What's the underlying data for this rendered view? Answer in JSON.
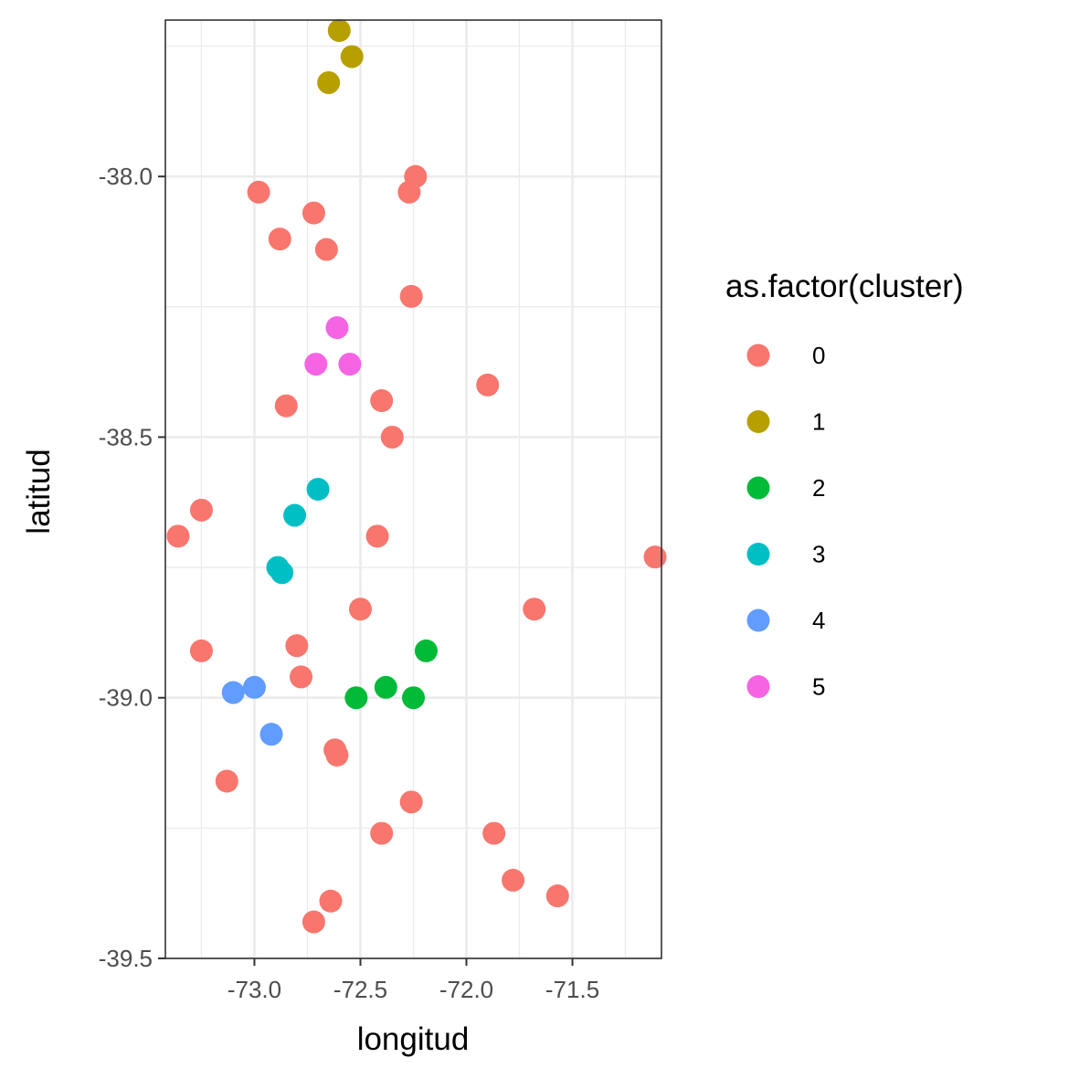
{
  "chart_data": {
    "type": "scatter",
    "title": "",
    "xlabel": "longitud",
    "ylabel": "latitud",
    "xlim": [
      -73.42,
      -71.08
    ],
    "ylim": [
      -39.5,
      -37.7
    ],
    "x_ticks": [
      -73.0,
      -72.5,
      -72.0,
      -71.5
    ],
    "x_tick_labels": [
      "-73.0",
      "-72.5",
      "-72.0",
      "-71.5"
    ],
    "y_ticks": [
      -38.0,
      -38.5,
      -39.0,
      -39.5
    ],
    "y_tick_labels": [
      "-38.0",
      "-38.5",
      "-39.0",
      "-39.5"
    ],
    "grid": true,
    "legend": {
      "title": "as.factor(cluster)",
      "position": "right",
      "entries": [
        {
          "label": "0",
          "color": "#F8766D"
        },
        {
          "label": "1",
          "color": "#B79F00"
        },
        {
          "label": "2",
          "color": "#00BA38"
        },
        {
          "label": "3",
          "color": "#00BFC4"
        },
        {
          "label": "4",
          "color": "#619CFF"
        },
        {
          "label": "5",
          "color": "#F564E3"
        }
      ]
    },
    "series": [
      {
        "name": "0",
        "color": "#F8766D",
        "points": [
          [
            -72.24,
            -38.0
          ],
          [
            -72.27,
            -38.03
          ],
          [
            -72.98,
            -38.03
          ],
          [
            -72.72,
            -38.07
          ],
          [
            -72.88,
            -38.12
          ],
          [
            -72.66,
            -38.14
          ],
          [
            -72.26,
            -38.23
          ],
          [
            -71.9,
            -38.4
          ],
          [
            -72.85,
            -38.44
          ],
          [
            -72.4,
            -38.43
          ],
          [
            -72.35,
            -38.5
          ],
          [
            -73.25,
            -38.64
          ],
          [
            -73.36,
            -38.69
          ],
          [
            -72.42,
            -38.69
          ],
          [
            -71.11,
            -38.73
          ],
          [
            -72.5,
            -38.83
          ],
          [
            -71.68,
            -38.83
          ],
          [
            -73.25,
            -38.91
          ],
          [
            -72.8,
            -38.9
          ],
          [
            -72.78,
            -38.96
          ],
          [
            -72.62,
            -39.1
          ],
          [
            -72.61,
            -39.11
          ],
          [
            -73.13,
            -39.16
          ],
          [
            -72.26,
            -39.2
          ],
          [
            -72.4,
            -39.26
          ],
          [
            -71.87,
            -39.26
          ],
          [
            -71.78,
            -39.35
          ],
          [
            -71.57,
            -39.38
          ],
          [
            -72.64,
            -39.39
          ],
          [
            -72.72,
            -39.43
          ]
        ]
      },
      {
        "name": "1",
        "color": "#B79F00",
        "points": [
          [
            -72.6,
            -37.72
          ],
          [
            -72.54,
            -37.77
          ],
          [
            -72.65,
            -37.82
          ]
        ]
      },
      {
        "name": "2",
        "color": "#00BA38",
        "points": [
          [
            -72.19,
            -38.91
          ],
          [
            -72.38,
            -38.98
          ],
          [
            -72.52,
            -39.0
          ],
          [
            -72.25,
            -39.0
          ]
        ]
      },
      {
        "name": "3",
        "color": "#00BFC4",
        "points": [
          [
            -72.7,
            -38.6
          ],
          [
            -72.81,
            -38.65
          ],
          [
            -72.89,
            -38.75
          ],
          [
            -72.87,
            -38.76
          ]
        ]
      },
      {
        "name": "4",
        "color": "#619CFF",
        "points": [
          [
            -73.0,
            -38.98
          ],
          [
            -73.1,
            -38.99
          ],
          [
            -72.92,
            -39.07
          ]
        ]
      },
      {
        "name": "5",
        "color": "#F564E3",
        "points": [
          [
            -72.61,
            -38.29
          ],
          [
            -72.71,
            -38.36
          ],
          [
            -72.55,
            -38.36
          ]
        ]
      }
    ]
  }
}
